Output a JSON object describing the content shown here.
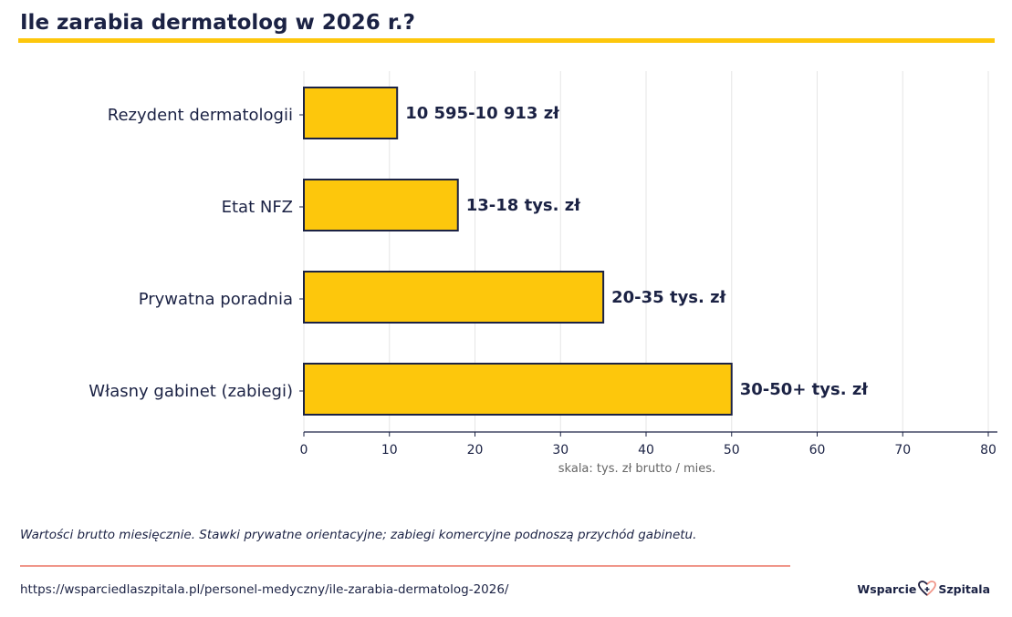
{
  "title": "Ile zarabia dermatolog w 2026 r.?",
  "footnote": "Wartości brutto miesięcznie. Stawki prywatne orientacyjne; zabiegi komercyjne podnoszą przychód gabinetu.",
  "url": "https://wsparciedlaszpitala.pl/personel-medyczny/ile-zarabia-dermatolog-2026/",
  "logo": {
    "left": "Wsparcie",
    "right": "Szpitala"
  },
  "colors": {
    "accent": "#fdc70c",
    "navy": "#1b2244",
    "footer_rule": "#f0968a",
    "grid": "#e6e6e6"
  },
  "chart_data": {
    "type": "bar",
    "orientation": "horizontal",
    "categories": [
      "Rezydent dermatologii",
      "Etat NFZ",
      "Prywatna poradnia",
      "Własny gabinet (zabiegi)"
    ],
    "values": [
      10.9,
      18,
      35,
      50
    ],
    "data_labels": [
      "10 595-10 913 zł",
      "13-18 tys. zł",
      "20-35 tys. zł",
      "30-50+ tys. zł"
    ],
    "xlabel": "skala: tys. zł brutto / mies.",
    "xlim": [
      0,
      81
    ],
    "xticks": [
      0,
      10,
      20,
      30,
      40,
      50,
      60,
      70,
      80
    ],
    "grid": true
  }
}
